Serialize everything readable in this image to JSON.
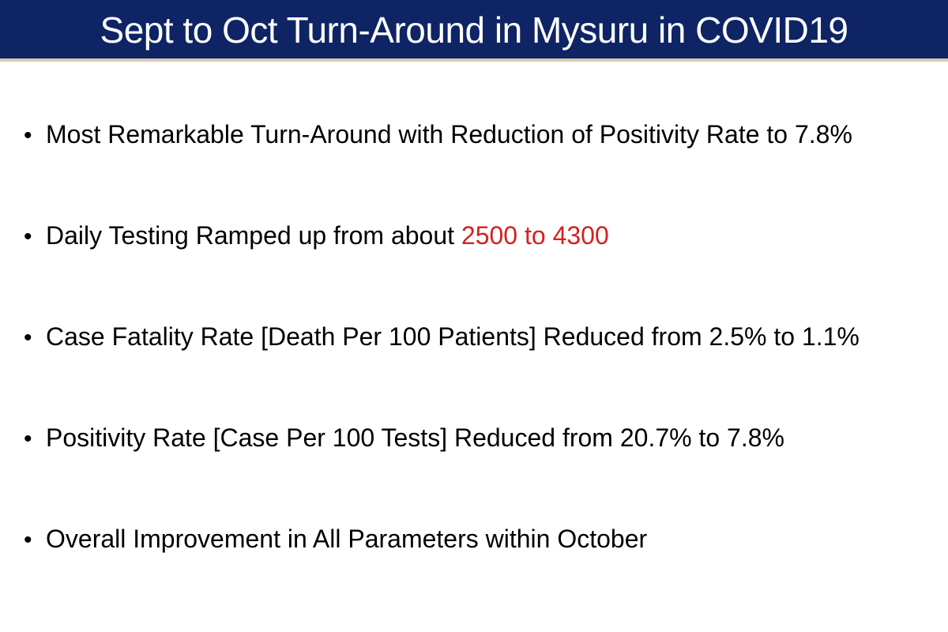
{
  "title": "Sept to Oct Turn-Around in Mysuru in COVID19",
  "colors": {
    "title_bar": "#0e2464",
    "title_underline": "#d9c9b0",
    "highlight": "#d42020"
  },
  "bullet_symbol": "•",
  "bullets": [
    {
      "pre": "Most Remarkable Turn-Around with Reduction of Positivity Rate to 7.8%",
      "highlight": "",
      "post": ""
    },
    {
      "pre": "Daily Testing Ramped up from about ",
      "highlight": "2500 to 4300",
      "post": ""
    },
    {
      "pre": "Case Fatality Rate [Death Per 100 Patients] Reduced from 2.5% to 1.1%",
      "highlight": "",
      "post": ""
    },
    {
      "pre": "Positivity Rate [Case Per 100 Tests] Reduced from 20.7% to 7.8%",
      "highlight": "",
      "post": ""
    },
    {
      "pre": "Overall Improvement in All Parameters within October",
      "highlight": "",
      "post": ""
    }
  ]
}
